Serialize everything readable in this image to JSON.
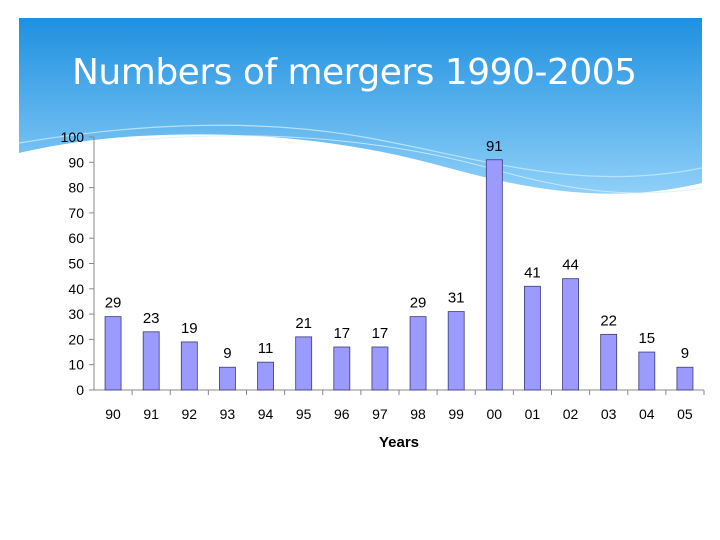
{
  "slide": {
    "title": "Numbers of mergers 1990-2005"
  },
  "colors": {
    "banner_top": "#1e90e0",
    "banner_bottom": "#7cc4f4",
    "bar_fill": "#9b9bff",
    "bar_stroke": "#3a3a7a"
  },
  "chart_data": {
    "type": "bar",
    "title": "",
    "xlabel": "Years",
    "ylabel": "",
    "ylim": [
      0,
      100
    ],
    "yticks": [
      0,
      10,
      20,
      30,
      40,
      50,
      60,
      70,
      80,
      90,
      100
    ],
    "grid": false,
    "categories": [
      "90",
      "91",
      "92",
      "93",
      "94",
      "95",
      "96",
      "97",
      "98",
      "99",
      "00",
      "01",
      "02",
      "03",
      "04",
      "05"
    ],
    "values": [
      29,
      23,
      19,
      9,
      11,
      21,
      17,
      17,
      29,
      31,
      91,
      41,
      44,
      22,
      15,
      9
    ]
  }
}
